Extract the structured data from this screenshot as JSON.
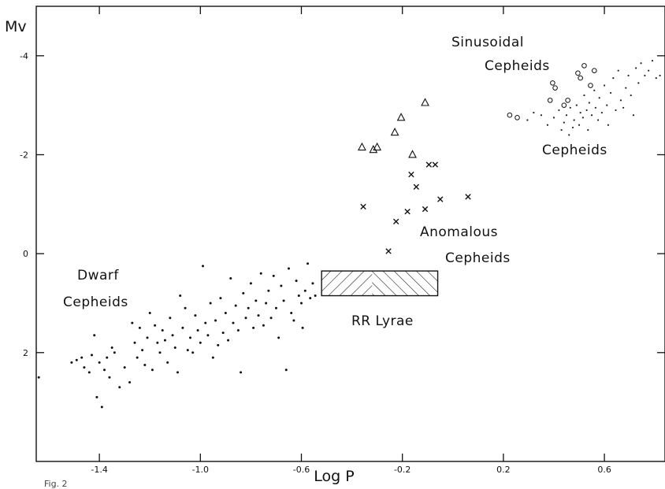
{
  "chart_data": {
    "type": "scatter",
    "title": "",
    "xlabel": "Log P",
    "ylabel": "Mv",
    "xlim": [
      -1.65,
      0.84
    ],
    "ylim": [
      4.2,
      -5.0
    ],
    "y_inverted": true,
    "grid": false,
    "legend": "none",
    "x_ticks": [
      {
        "value": -1.4,
        "label": "-1.4"
      },
      {
        "value": -1.0,
        "label": "-1.0"
      },
      {
        "value": -0.6,
        "label": "-0.6"
      },
      {
        "value": -0.2,
        "label": "-0.2"
      },
      {
        "value": 0.2,
        "label": "0.2"
      },
      {
        "value": 0.6,
        "label": "0.6"
      }
    ],
    "y_ticks": [
      {
        "value": -4,
        "label": "-4"
      },
      {
        "value": -2,
        "label": "-2"
      },
      {
        "value": 0,
        "label": "0"
      },
      {
        "value": 2,
        "label": "2"
      }
    ],
    "annotations": {
      "dwarf_line1": "Dwarf",
      "dwarf_line2": "Cepheids",
      "rr_lyrae": "RR Lyrae",
      "anomalous_line1": "Anomalous",
      "anomalous_line2": "Cepheids",
      "sinusoidal_line1": "Sinusoidal",
      "sinusoidal_line2": "Cepheids",
      "classical": "Cepheids"
    },
    "footer_text": "Fig. 2",
    "rr_lyrae_box": {
      "x_from": -0.52,
      "x_to": -0.06,
      "y_from": 0.35,
      "y_to": 0.85
    },
    "series": [
      {
        "marker": "dot",
        "points": [
          [
            -1.64,
            2.5
          ],
          [
            -1.51,
            2.2
          ],
          [
            -1.49,
            2.15
          ],
          [
            -1.47,
            2.1
          ],
          [
            -1.46,
            2.3
          ],
          [
            -1.44,
            2.4
          ],
          [
            -1.43,
            2.05
          ],
          [
            -1.42,
            1.65
          ],
          [
            -1.41,
            2.9
          ],
          [
            -1.4,
            2.2
          ],
          [
            -1.39,
            3.1
          ],
          [
            -1.38,
            2.35
          ],
          [
            -1.37,
            2.1
          ],
          [
            -1.36,
            2.5
          ],
          [
            -1.35,
            1.9
          ],
          [
            -1.34,
            2.0
          ],
          [
            -1.32,
            2.7
          ],
          [
            -1.3,
            2.3
          ],
          [
            -1.28,
            2.6
          ],
          [
            -1.27,
            1.4
          ],
          [
            -1.26,
            1.8
          ],
          [
            -1.25,
            2.1
          ],
          [
            -1.24,
            1.5
          ],
          [
            -1.23,
            1.95
          ],
          [
            -1.22,
            2.25
          ],
          [
            -1.21,
            1.7
          ],
          [
            -1.2,
            1.2
          ],
          [
            -1.19,
            2.35
          ],
          [
            -1.18,
            1.45
          ],
          [
            -1.17,
            1.8
          ],
          [
            -1.16,
            2.0
          ],
          [
            -1.15,
            1.55
          ],
          [
            -1.14,
            1.75
          ],
          [
            -1.13,
            2.2
          ],
          [
            -1.12,
            1.3
          ],
          [
            -1.11,
            1.65
          ],
          [
            -1.1,
            1.9
          ],
          [
            -1.09,
            2.4
          ],
          [
            -1.08,
            0.85
          ],
          [
            -1.07,
            1.5
          ],
          [
            -1.06,
            1.1
          ],
          [
            -1.05,
            1.95
          ],
          [
            -1.04,
            1.7
          ],
          [
            -1.03,
            2.0
          ],
          [
            -1.02,
            1.25
          ],
          [
            -1.01,
            1.55
          ],
          [
            -1.0,
            1.8
          ],
          [
            -0.99,
            0.25
          ],
          [
            -0.98,
            1.4
          ],
          [
            -0.97,
            1.65
          ],
          [
            -0.96,
            1.0
          ],
          [
            -0.95,
            2.1
          ],
          [
            -0.94,
            1.35
          ],
          [
            -0.93,
            1.85
          ],
          [
            -0.92,
            0.9
          ],
          [
            -0.91,
            1.6
          ],
          [
            -0.9,
            1.2
          ],
          [
            -0.89,
            1.75
          ],
          [
            -0.88,
            0.5
          ],
          [
            -0.87,
            1.4
          ],
          [
            -0.86,
            1.05
          ],
          [
            -0.85,
            1.55
          ],
          [
            -0.84,
            2.4
          ],
          [
            -0.83,
            0.8
          ],
          [
            -0.82,
            1.3
          ],
          [
            -0.81,
            1.1
          ],
          [
            -0.8,
            0.6
          ],
          [
            -0.79,
            1.5
          ],
          [
            -0.78,
            0.95
          ],
          [
            -0.77,
            1.25
          ],
          [
            -0.76,
            0.4
          ],
          [
            -0.75,
            1.45
          ],
          [
            -0.74,
            1.0
          ],
          [
            -0.73,
            0.75
          ],
          [
            -0.72,
            1.3
          ],
          [
            -0.71,
            0.45
          ],
          [
            -0.7,
            1.1
          ],
          [
            -0.69,
            1.7
          ],
          [
            -0.68,
            0.65
          ],
          [
            -0.67,
            0.95
          ],
          [
            -0.66,
            2.35
          ],
          [
            -0.65,
            0.3
          ],
          [
            -0.64,
            1.2
          ],
          [
            -0.63,
            1.35
          ],
          [
            -0.62,
            0.55
          ],
          [
            -0.61,
            0.85
          ],
          [
            -0.6,
            1.0
          ],
          [
            -0.595,
            1.5
          ],
          [
            -0.585,
            0.75
          ],
          [
            -0.575,
            0.2
          ],
          [
            -0.565,
            0.9
          ],
          [
            -0.555,
            0.6
          ],
          [
            -0.545,
            0.85
          ]
        ]
      },
      {
        "marker": "cross",
        "points": [
          [
            -0.355,
            -0.95
          ],
          [
            -0.255,
            -0.05
          ],
          [
            -0.225,
            -0.65
          ],
          [
            -0.18,
            -0.85
          ],
          [
            -0.165,
            -1.6
          ],
          [
            -0.145,
            -1.35
          ],
          [
            -0.11,
            -0.9
          ],
          [
            -0.095,
            -1.8
          ],
          [
            -0.07,
            -1.8
          ],
          [
            -0.05,
            -1.1
          ],
          [
            0.06,
            -1.15
          ]
        ]
      },
      {
        "marker": "triangle",
        "points": [
          [
            -0.36,
            -2.15
          ],
          [
            -0.315,
            -2.1
          ],
          [
            -0.3,
            -2.15
          ],
          [
            -0.23,
            -2.45
          ],
          [
            -0.205,
            -2.75
          ],
          [
            -0.16,
            -2.0
          ],
          [
            -0.11,
            -3.05
          ]
        ]
      },
      {
        "marker": "circle",
        "points": [
          [
            0.225,
            -2.8
          ],
          [
            0.255,
            -2.75
          ],
          [
            0.385,
            -3.1
          ],
          [
            0.395,
            -3.45
          ],
          [
            0.405,
            -3.35
          ],
          [
            0.44,
            -3.0
          ],
          [
            0.455,
            -3.1
          ],
          [
            0.495,
            -3.65
          ],
          [
            0.505,
            -3.55
          ],
          [
            0.52,
            -3.8
          ],
          [
            0.545,
            -3.4
          ],
          [
            0.56,
            -3.7
          ]
        ]
      },
      {
        "marker": "small-dot",
        "points": [
          [
            0.295,
            -2.7
          ],
          [
            0.32,
            -2.85
          ],
          [
            0.35,
            -2.8
          ],
          [
            0.375,
            -2.6
          ],
          [
            0.4,
            -2.75
          ],
          [
            0.42,
            -2.9
          ],
          [
            0.43,
            -2.5
          ],
          [
            0.44,
            -2.65
          ],
          [
            0.45,
            -2.8
          ],
          [
            0.46,
            -2.4
          ],
          [
            0.465,
            -2.95
          ],
          [
            0.475,
            -2.55
          ],
          [
            0.48,
            -2.7
          ],
          [
            0.49,
            -3.0
          ],
          [
            0.5,
            -2.6
          ],
          [
            0.505,
            -2.85
          ],
          [
            0.515,
            -2.75
          ],
          [
            0.52,
            -3.2
          ],
          [
            0.53,
            -2.9
          ],
          [
            0.535,
            -2.5
          ],
          [
            0.54,
            -3.05
          ],
          [
            0.55,
            -2.8
          ],
          [
            0.56,
            -3.3
          ],
          [
            0.565,
            -2.95
          ],
          [
            0.575,
            -2.7
          ],
          [
            0.58,
            -3.15
          ],
          [
            0.59,
            -2.85
          ],
          [
            0.6,
            -3.4
          ],
          [
            0.61,
            -3.0
          ],
          [
            0.615,
            -2.6
          ],
          [
            0.625,
            -3.25
          ],
          [
            0.635,
            -3.55
          ],
          [
            0.645,
            -2.9
          ],
          [
            0.655,
            -3.7
          ],
          [
            0.665,
            -3.1
          ],
          [
            0.675,
            -2.95
          ],
          [
            0.685,
            -3.35
          ],
          [
            0.695,
            -3.6
          ],
          [
            0.705,
            -3.2
          ],
          [
            0.715,
            -2.8
          ],
          [
            0.725,
            -3.75
          ],
          [
            0.735,
            -3.45
          ],
          [
            0.745,
            -3.85
          ],
          [
            0.76,
            -3.6
          ],
          [
            0.775,
            -3.7
          ],
          [
            0.79,
            -3.9
          ],
          [
            0.805,
            -3.55
          ],
          [
            0.82,
            -3.6
          ]
        ]
      }
    ]
  }
}
